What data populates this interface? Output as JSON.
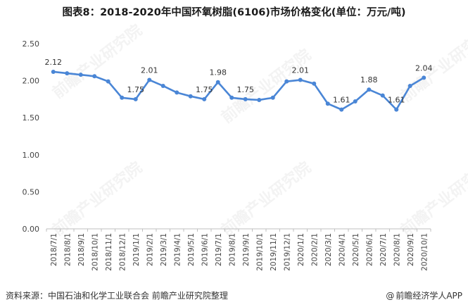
{
  "title": "图表8：2018-2020年中国环氧树脂(6106)市场价格变化(单位：万元/吨)",
  "footer": {
    "source": "资料来源：中国石油和化学工业联合会 前瞻产业研究院整理",
    "brand": "前瞻经济学人APP",
    "brand_mark": "@"
  },
  "watermark_text": "前瞻产业研究院",
  "colors": {
    "line": "#4a86d6",
    "axis": "#bfbfbf",
    "text": "#444444"
  },
  "chart_data": {
    "type": "line",
    "title": "图表8：2018-2020年中国环氧树脂(6106)市场价格变化(单位：万元/吨)",
    "xlabel": "",
    "ylabel": "",
    "ylim": [
      0,
      2.5
    ],
    "yticks": [
      "0.00",
      "0.50",
      "1.00",
      "1.50",
      "2.00",
      "2.50"
    ],
    "grid": false,
    "categories": [
      "2018/7/1",
      "2018/8/1",
      "2018/9/1",
      "2018/10/1",
      "2018/11/1",
      "2018/12/1",
      "2019/1/1",
      "2019/2/1",
      "2019/3/1",
      "2019/4/1",
      "2019/5/1",
      "2019/6/1",
      "2019/7/1",
      "2019/8/1",
      "2019/9/1",
      "2019/10/1",
      "2019/11/1",
      "2019/12/1",
      "2020/1/1",
      "2020/2/1",
      "2020/3/1",
      "2020/4/1",
      "2020/5/1",
      "2020/6/1",
      "2020/7/1",
      "2020/8/1",
      "2020/9/1",
      "2020/10/1"
    ],
    "values": [
      2.12,
      2.1,
      2.08,
      2.06,
      1.99,
      1.77,
      1.75,
      2.01,
      1.93,
      1.84,
      1.79,
      1.75,
      1.98,
      1.77,
      1.75,
      1.74,
      1.77,
      1.99,
      2.01,
      1.96,
      1.69,
      1.61,
      1.72,
      1.88,
      1.8,
      1.61,
      1.93,
      2.04
    ],
    "data_labels": [
      {
        "index": 0,
        "text": "2.12"
      },
      {
        "index": 6,
        "text": "1.75"
      },
      {
        "index": 7,
        "text": "2.01"
      },
      {
        "index": 11,
        "text": "1.75"
      },
      {
        "index": 12,
        "text": "1.98"
      },
      {
        "index": 14,
        "text": "1.75"
      },
      {
        "index": 18,
        "text": "2.01"
      },
      {
        "index": 21,
        "text": "1.61"
      },
      {
        "index": 23,
        "text": "1.88"
      },
      {
        "index": 25,
        "text": "1.61"
      },
      {
        "index": 27,
        "text": "2.04"
      }
    ]
  }
}
